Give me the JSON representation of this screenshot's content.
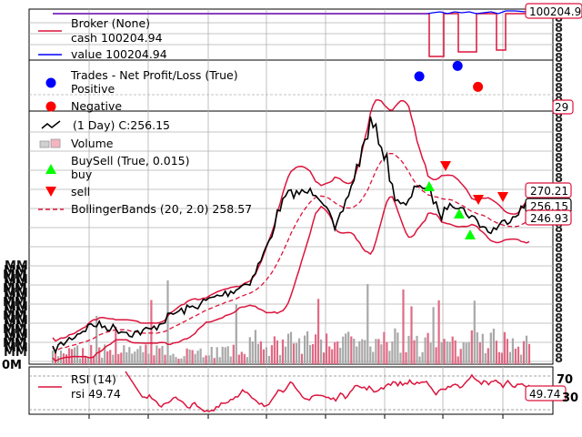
{
  "colors": {
    "broker": "#dc143c",
    "value": "#0000ff",
    "positive": "#0000ff",
    "negative": "#ff0000",
    "price": "#000000",
    "volume": "#b0b0b0",
    "buy": "#00ff00",
    "sell": "#ff0000",
    "bollinger": "#dc143c",
    "rsi": "#dc143c",
    "tagBorder": "#dc143c"
  },
  "panels": {
    "broker": {
      "legend": [
        "Broker (None)",
        "cash 100204.94",
        "value 100204.94"
      ],
      "tag": "100204.94"
    },
    "trades": {
      "legend": [
        "Trades - Net Profit/Loss (True)",
        "Positive",
        "Negative"
      ],
      "tag": "29"
    },
    "price": {
      "legend": [
        "(1 Day) C:256.15",
        "Volume",
        "BuySell (True, 0.015)",
        "buy",
        "sell",
        "BollingerBands (20, 2.0) 258.57"
      ],
      "tags": [
        "270.21",
        "256.15",
        "246.93"
      ],
      "volume_axis_label": "0M"
    },
    "rsi": {
      "legend": [
        "RSI (14)",
        "rsi 49.74"
      ],
      "tag": "49.74",
      "tick_labels": [
        "70",
        "30"
      ]
    }
  },
  "chart_data": [
    {
      "type": "line",
      "panel": "broker",
      "series": [
        {
          "name": "cash",
          "values": [
            100204.94,
            100204.94,
            100204.94,
            100204.94,
            100204.94,
            100204.94,
            100204.94,
            100204.94,
            60000,
            100204.94,
            100204.94,
            60000,
            100204.94,
            60000,
            100204.94,
            100204.94
          ]
        },
        {
          "name": "value",
          "values": [
            100204.94,
            100204.94,
            100204.94,
            100204.94,
            100204.94,
            100204.94,
            100204.94,
            100204.94,
            100140,
            100170,
            100140,
            100190,
            100160,
            100200,
            100204.94,
            100204.94
          ]
        }
      ]
    },
    {
      "type": "scatter",
      "panel": "trades",
      "series": [
        {
          "name": "Positive",
          "points": [
            [
              0.745,
              0.29
            ],
            [
              0.818,
              0.05
            ]
          ]
        },
        {
          "name": "Negative",
          "points": [
            [
              0.857,
              0.53
            ]
          ]
        }
      ]
    },
    {
      "type": "line",
      "panel": "price",
      "title": "(1 Day) C:256.15",
      "last_close": 256.15,
      "bollinger_last": {
        "top": 270.21,
        "mid": 258.57,
        "bot": 246.93
      }
    },
    {
      "type": "line",
      "panel": "rsi",
      "last": 49.74,
      "levels": [
        70,
        30
      ]
    }
  ]
}
